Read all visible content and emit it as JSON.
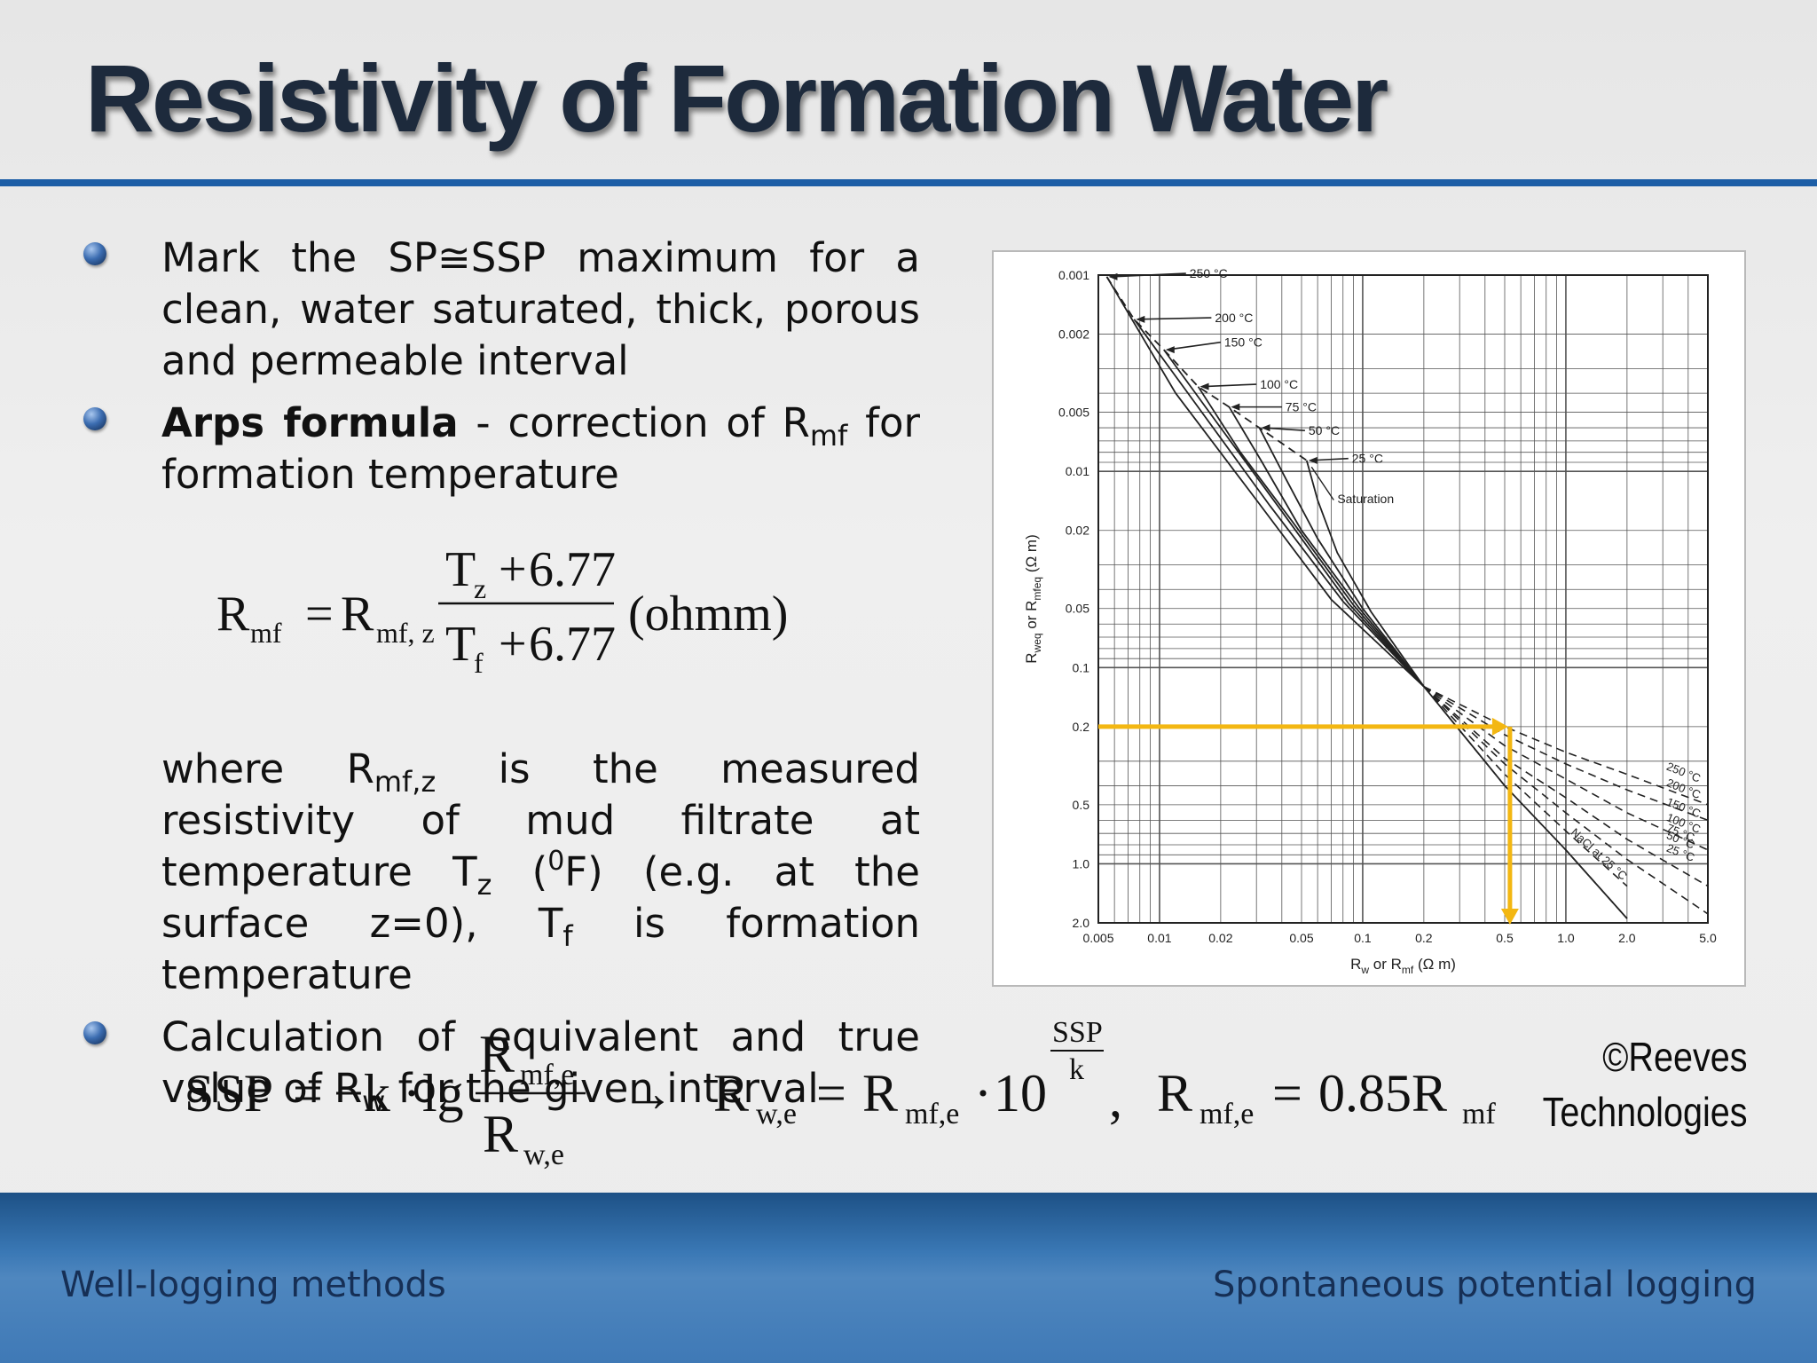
{
  "slide": {
    "title": "Resistivity of Formation Water"
  },
  "bullets": {
    "b1": "Mark the SP≅SSP maximum for a clean, water saturated, thick, porous and permeable interval",
    "b2_bold": "Arps formula",
    "b2_rest_a": " - correction of R",
    "b2_sub": "mf",
    "b2_rest_b": " for formation temperature",
    "where": {
      "t1": "where R",
      "s1": "mf,z",
      "t2": " is the measured resistivity of mud filtrate at temperature T",
      "s2": "z",
      "t3": " (",
      "sup": "0",
      "t4": "F) (e.g. at the surface z=0), T",
      "s3": "f",
      "t5": " is formation temperature"
    },
    "b3_a": "Calculation of equivalent and true value of R",
    "b3_sub": "w",
    "b3_b": " for the given interval"
  },
  "eq1": {
    "R": "R",
    "mf": "mf",
    "eq": "=",
    "mfz": "mf, z",
    "Tz": "T",
    "z": "z",
    "plus": "+",
    "c": "6.77",
    "Tf": "T",
    "f": "f",
    "unit": "(ohmm)"
  },
  "eq2": {
    "ssp": "SSP",
    "eq": "=",
    "minusk": "−k",
    "dot": "·",
    "lg": "lg",
    "R": "R",
    "mfe": "mf,e",
    "we": "w,e",
    "arrow": "→",
    "ten": "10",
    "exp_num": "SSP",
    "exp_den": "k",
    "comma": ",",
    "coef": "0.85R",
    "mf": "mf"
  },
  "copyright": {
    "line1": "©Reeves",
    "line2": "Technologies"
  },
  "footer": {
    "left": "Well-logging methods",
    "right": "Spontaneous potential logging"
  },
  "chart_data": {
    "type": "line",
    "log_x": true,
    "log_y": true,
    "y_reversed": true,
    "xlim": [
      0.005,
      5.0
    ],
    "ylim": [
      0.001,
      2.0
    ],
    "x_ticks": [
      "0.005",
      "0.01",
      "0.02",
      "0.05",
      "0.1",
      "0.2",
      "0.5",
      "1.0",
      "2.0",
      "5.0"
    ],
    "y_ticks": [
      "0.001",
      "0.002",
      "0.005",
      "0.01",
      "0.02",
      "0.05",
      "0.1",
      "0.2",
      "0.5",
      "1.0",
      "2.0"
    ],
    "xlabel_main": "R",
    "xlabel_s1": "w",
    "xlabel_or": " or R",
    "xlabel_s2": "mf",
    "xlabel_unit": "  (Ω m)",
    "ylabel_main": "R",
    "ylabel_s1": "weq",
    "ylabel_or": " or R",
    "ylabel_s2": "mfeq",
    "ylabel_unit": "   (Ω m)",
    "grid": true,
    "series": [
      {
        "name": "250 °C",
        "points": [
          [
            0.0055,
            0.00102
          ],
          [
            0.012,
            0.004
          ],
          [
            0.03,
            0.014
          ],
          [
            0.07,
            0.045
          ],
          [
            0.2,
            0.125
          ],
          [
            0.5,
            0.2
          ],
          [
            1,
            0.27
          ],
          [
            2,
            0.35
          ],
          [
            5,
            0.5
          ]
        ]
      },
      {
        "name": "200 °C",
        "points": [
          [
            0.0075,
            0.00168
          ],
          [
            0.015,
            0.0045
          ],
          [
            0.035,
            0.015
          ],
          [
            0.08,
            0.046
          ],
          [
            0.2,
            0.125
          ],
          [
            0.5,
            0.22
          ],
          [
            1,
            0.31
          ],
          [
            2,
            0.42
          ],
          [
            5,
            0.6
          ]
        ]
      },
      {
        "name": "150 °C",
        "points": [
          [
            0.0105,
            0.0024
          ],
          [
            0.02,
            0.006
          ],
          [
            0.04,
            0.016
          ],
          [
            0.085,
            0.047
          ],
          [
            0.2,
            0.125
          ],
          [
            0.5,
            0.25
          ],
          [
            1,
            0.37
          ],
          [
            2,
            0.55
          ],
          [
            5,
            0.85
          ]
        ]
      },
      {
        "name": "100 °C",
        "points": [
          [
            0.0155,
            0.0037
          ],
          [
            0.025,
            0.008
          ],
          [
            0.045,
            0.018
          ],
          [
            0.09,
            0.048
          ],
          [
            0.2,
            0.125
          ],
          [
            0.5,
            0.29
          ],
          [
            1,
            0.46
          ],
          [
            2,
            0.75
          ],
          [
            5,
            1.3
          ]
        ]
      },
      {
        "name": "75 °C",
        "points": [
          [
            0.022,
            0.0047
          ],
          [
            0.032,
            0.009
          ],
          [
            0.05,
            0.02
          ],
          [
            0.095,
            0.049
          ],
          [
            0.2,
            0.125
          ],
          [
            0.5,
            0.31
          ],
          [
            1,
            0.55
          ],
          [
            2,
            0.95
          ],
          [
            5,
            1.8
          ]
        ]
      },
      {
        "name": "50 °C",
        "points": [
          [
            0.031,
            0.006
          ],
          [
            0.042,
            0.011
          ],
          [
            0.06,
            0.022
          ],
          [
            0.1,
            0.05
          ],
          [
            0.2,
            0.125
          ],
          [
            0.5,
            0.35
          ],
          [
            1,
            0.68
          ],
          [
            2,
            1.3
          ]
        ]
      },
      {
        "name": "25 °C",
        "points": [
          [
            0.053,
            0.0088
          ],
          [
            0.06,
            0.014
          ],
          [
            0.075,
            0.026
          ],
          [
            0.11,
            0.052
          ],
          [
            0.2,
            0.125
          ],
          [
            0.5,
            0.4
          ],
          [
            1,
            0.85
          ],
          [
            2,
            1.9
          ]
        ]
      },
      {
        "name": "Saturation",
        "dashed": true,
        "points": [
          [
            0.0055,
            0.00102
          ],
          [
            0.0075,
            0.00168
          ],
          [
            0.0105,
            0.0024
          ],
          [
            0.0155,
            0.0037
          ],
          [
            0.022,
            0.0047
          ],
          [
            0.031,
            0.006
          ],
          [
            0.053,
            0.0088
          ]
        ]
      },
      {
        "name": "NaCl at 25 °C",
        "points": [
          [
            0.2,
            0.125
          ],
          [
            0.5,
            0.4
          ],
          [
            1,
            0.85
          ],
          [
            2,
            1.9
          ]
        ]
      }
    ],
    "callouts": {
      "c250": "250 °C",
      "c200": "200 °C",
      "c150": "150 °C",
      "c100": "100 °C",
      "c75": "75 °C",
      "c50": "50 °C",
      "c25": "25 °C",
      "sat": "Saturation"
    },
    "right_labels": [
      "250 °C",
      "200 °C",
      "150 °C",
      "100 °C",
      "75 °C",
      "50 °C",
      "25 °C"
    ],
    "nacl_label": "NaCl at 25 °C",
    "highlight": {
      "color": "#f3b712",
      "from_y": 0.2,
      "to_x": 0.52,
      "down_to": 2.0
    },
    "colors": {
      "lines": "#222222",
      "grid": "#555555",
      "highlight": "#f3b712"
    }
  }
}
